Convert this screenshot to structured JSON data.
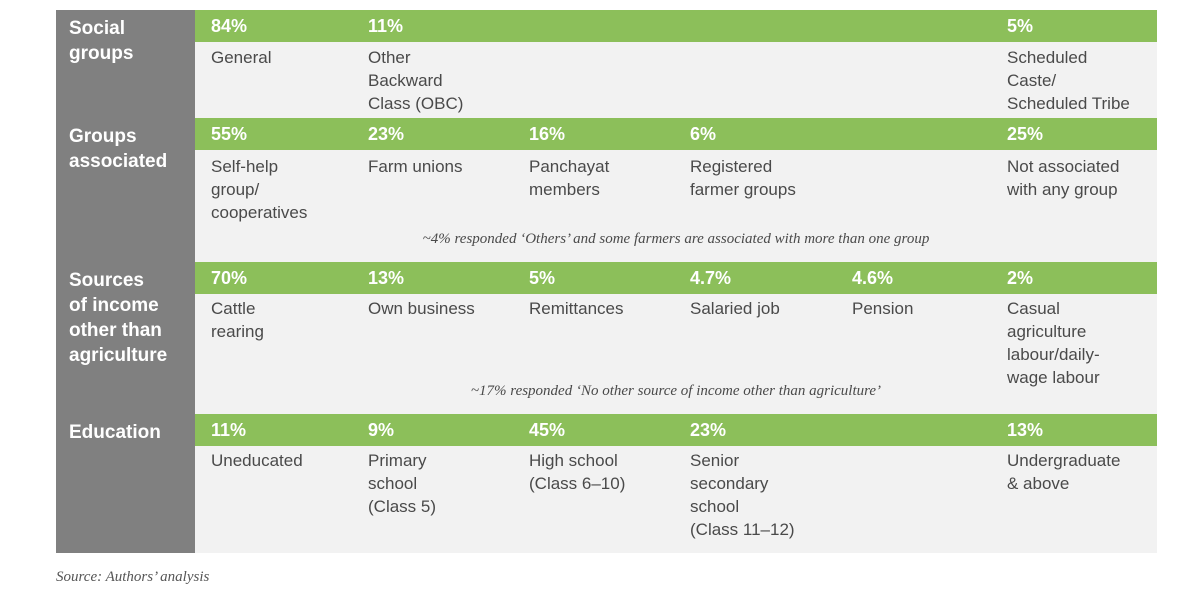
{
  "sections": [
    {
      "label": "Social\ngroups",
      "items": [
        {
          "pct": "84%",
          "label": "General"
        },
        {
          "pct": "11%",
          "label": "Other\nBackward\nClass (OBC)"
        },
        {
          "pct": "5%",
          "label": "Scheduled\nCaste/\nScheduled Tribe"
        }
      ]
    },
    {
      "label": "Groups\nassociated",
      "items": [
        {
          "pct": "55%",
          "label": "Self-help\ngroup/\ncooperatives"
        },
        {
          "pct": "23%",
          "label": "Farm unions"
        },
        {
          "pct": "16%",
          "label": "Panchayat\nmembers"
        },
        {
          "pct": "6%",
          "label": "Registered\nfarmer groups"
        },
        {
          "pct": "25%",
          "label": "Not associated\nwith any group"
        }
      ],
      "note": "~4% responded ‘Others’ and some farmers are associated with more than one group"
    },
    {
      "label": "Sources\nof income\nother than\nagriculture",
      "items": [
        {
          "pct": "70%",
          "label": "Cattle\nrearing"
        },
        {
          "pct": "13%",
          "label": "Own business"
        },
        {
          "pct": "5%",
          "label": "Remittances"
        },
        {
          "pct": "4.7%",
          "label": "Salaried job"
        },
        {
          "pct": "4.6%",
          "label": "Pension"
        },
        {
          "pct": "2%",
          "label": "Casual\nagriculture\nlabour/daily-\nwage labour"
        }
      ],
      "note": "~17% responded ‘No other source of income other than agriculture’"
    },
    {
      "label": "Education",
      "items": [
        {
          "pct": "11%",
          "label": "Uneducated"
        },
        {
          "pct": "9%",
          "label": "Primary\nschool\n(Class 5)"
        },
        {
          "pct": "45%",
          "label": "High school\n(Class 6–10)"
        },
        {
          "pct": "23%",
          "label": "Senior\nsecondary\nschool\n(Class 11–12)"
        },
        {
          "pct": "13%",
          "label": "Undergraduate\n& above"
        }
      ]
    }
  ],
  "source": "Source: Authors’ analysis",
  "colors": {
    "band": "#8cbf5a",
    "sidebar": "#808080",
    "panel": "#f2f2f2"
  }
}
